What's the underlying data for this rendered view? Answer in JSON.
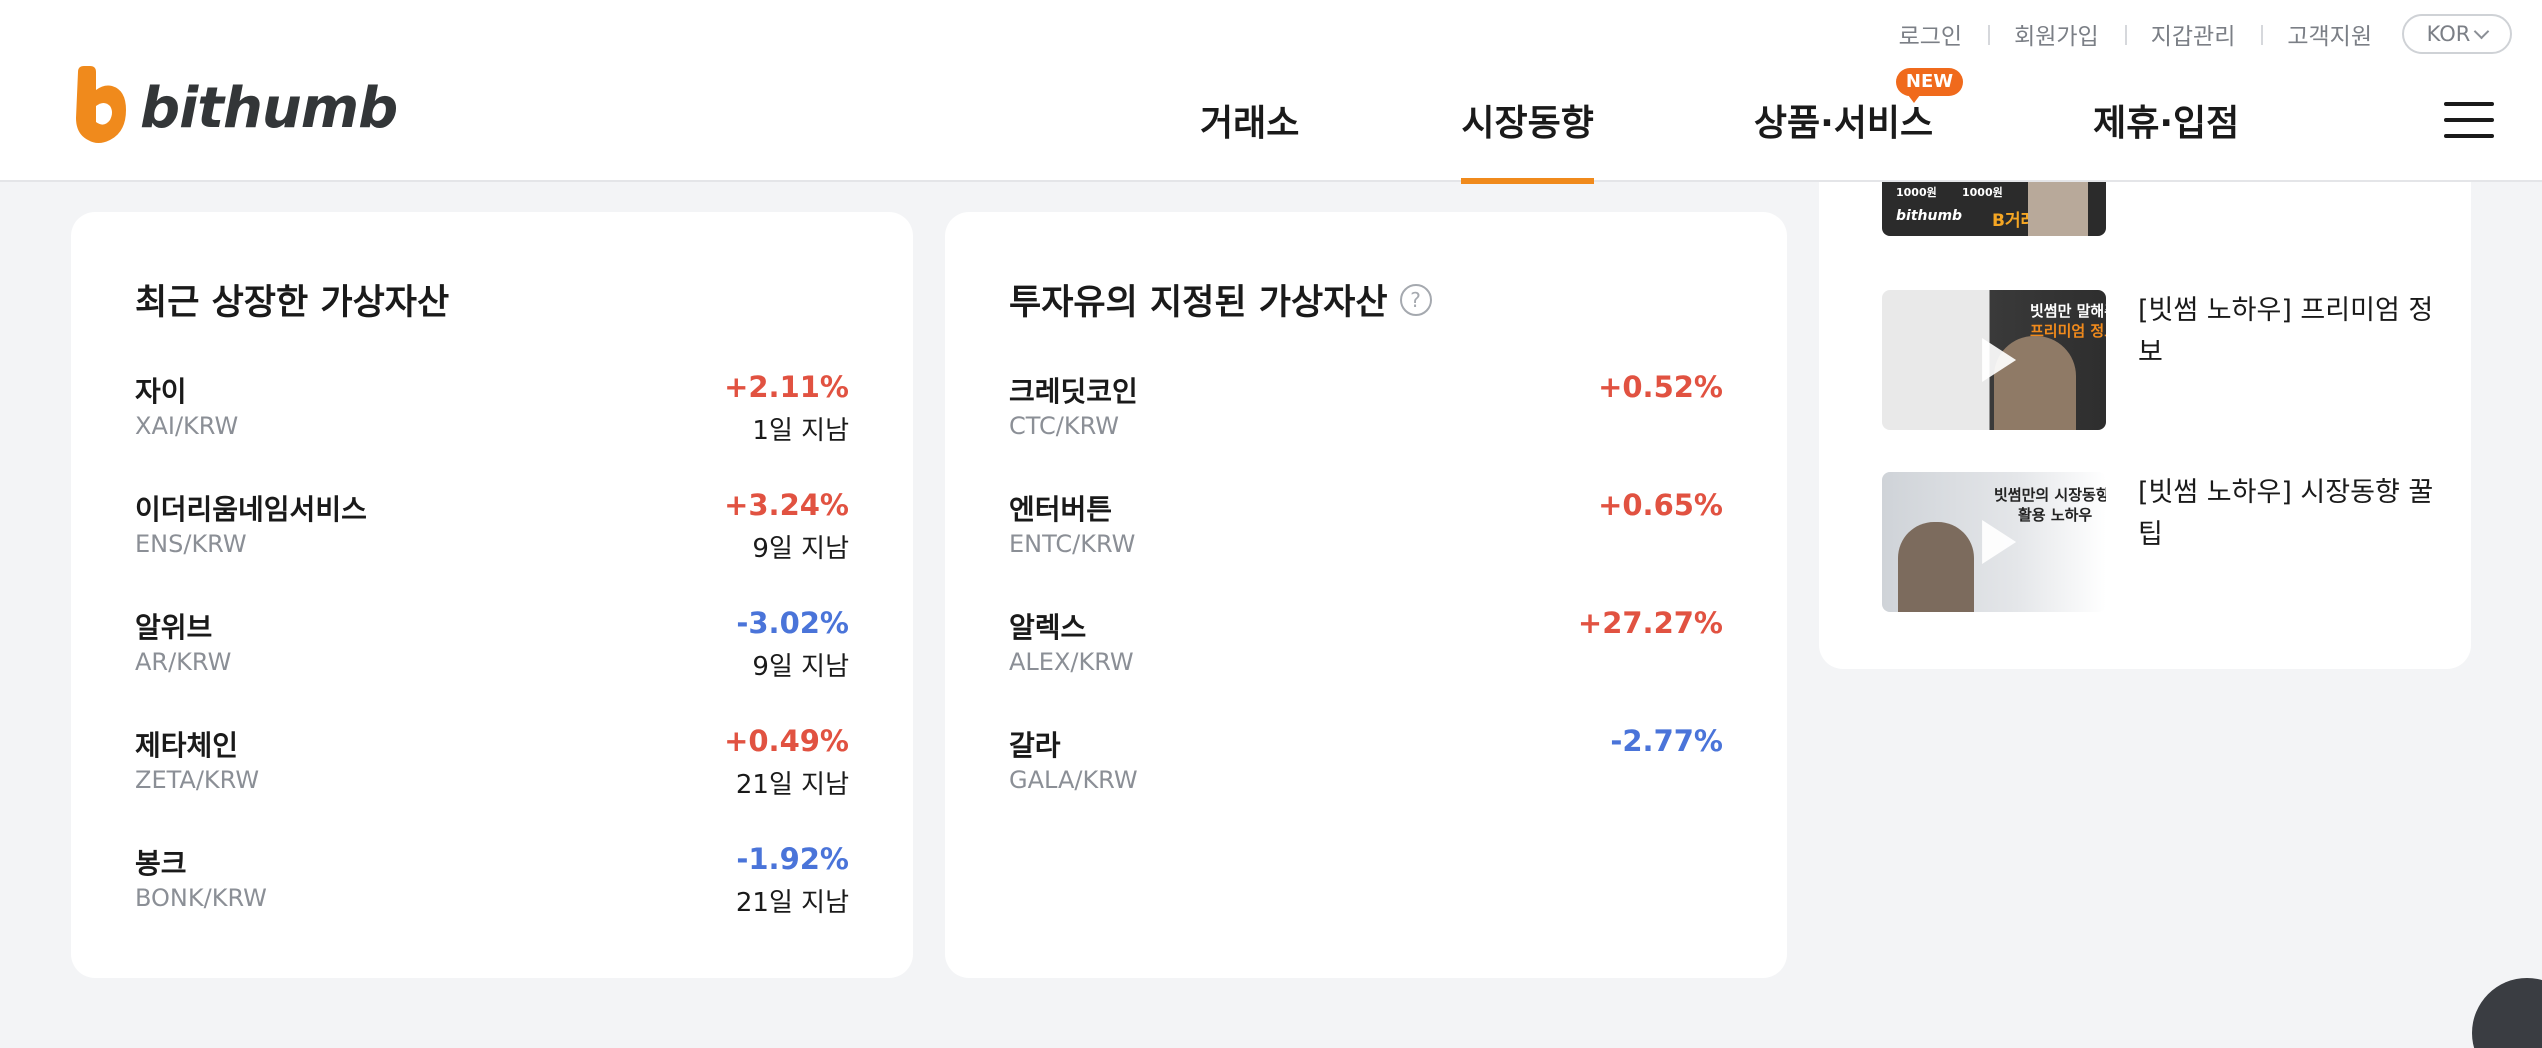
{
  "header": {
    "utility_links": [
      "로그인",
      "회원가입",
      "지갑관리",
      "고객지원"
    ],
    "language": "KOR",
    "logo_text": "bithumb",
    "nav": [
      {
        "label": "거래소"
      },
      {
        "label": "시장동향",
        "active": true
      },
      {
        "label": "상품·서비스",
        "badge": "NEW"
      },
      {
        "label": "제휴·입점"
      }
    ],
    "accent_color": "#f08a1c"
  },
  "recent_listed": {
    "title": "최근 상장한 가상자산",
    "items": [
      {
        "name": "자이",
        "pair": "XAI/KRW",
        "change": "+2.11%",
        "direction": "up",
        "since": "1일 지남"
      },
      {
        "name": "이더리움네임서비스",
        "pair": "ENS/KRW",
        "change": "+3.24%",
        "direction": "up",
        "since": "9일 지남"
      },
      {
        "name": "알위브",
        "pair": "AR/KRW",
        "change": "-3.02%",
        "direction": "down",
        "since": "9일 지남"
      },
      {
        "name": "제타체인",
        "pair": "ZETA/KRW",
        "change": "+0.49%",
        "direction": "up",
        "since": "21일 지남"
      },
      {
        "name": "봉크",
        "pair": "BONK/KRW",
        "change": "-1.92%",
        "direction": "down",
        "since": "21일 지남"
      }
    ]
  },
  "caution_assets": {
    "title": "투자유의 지정된 가상자산",
    "help_icon": "question-icon",
    "items": [
      {
        "name": "크레딧코인",
        "pair": "CTC/KRW",
        "change": "+0.52%",
        "direction": "up"
      },
      {
        "name": "엔터버튼",
        "pair": "ENTC/KRW",
        "change": "+0.65%",
        "direction": "up"
      },
      {
        "name": "알렉스",
        "pair": "ALEX/KRW",
        "change": "+27.27%",
        "direction": "up"
      },
      {
        "name": "갈라",
        "pair": "GALA/KRW",
        "change": "-2.77%",
        "direction": "down"
      }
    ]
  },
  "videos": {
    "items": [
      {
        "title": "",
        "thumb_text": [
          "1000원",
          "1000원",
          "bithumb",
          "B거래소"
        ]
      },
      {
        "title": "[빗썸 노하우] 프리미엄 정보",
        "thumb_text": [
          "빗썸만 말해주는",
          "프리미엄 정보"
        ]
      },
      {
        "title": "[빗썸 노하우] 시장동향 꿀팁",
        "thumb_text": [
          "빗썸만의 시장동향",
          "활용 노하우"
        ]
      }
    ]
  },
  "colors": {
    "up": "#e15241",
    "down": "#4a74d9"
  }
}
